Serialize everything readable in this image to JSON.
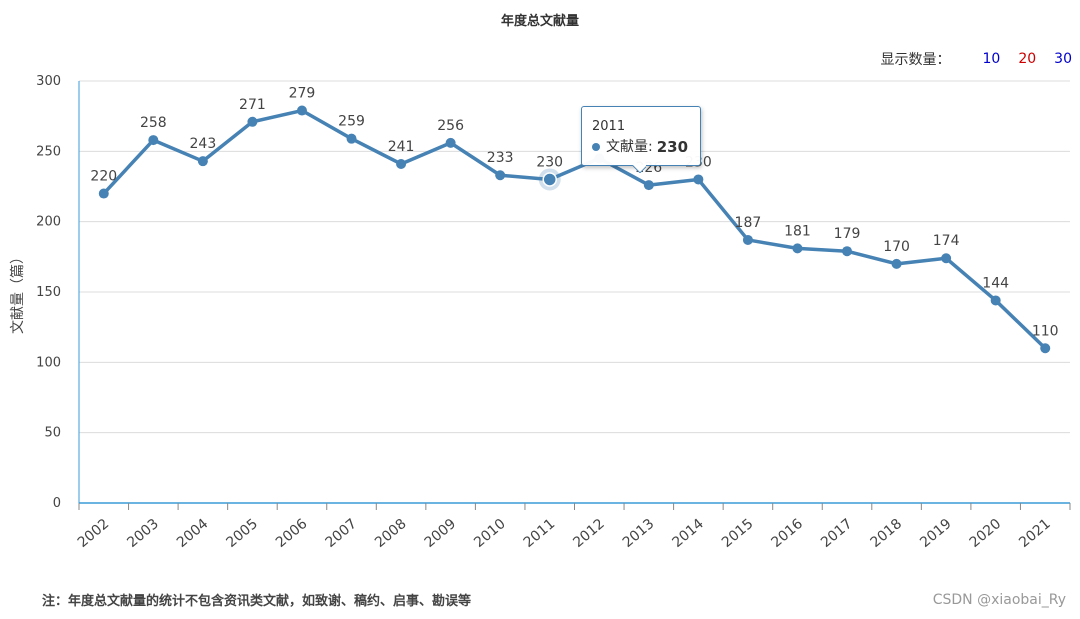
{
  "chart_data": {
    "type": "line",
    "title": "年度总文献量",
    "ylabel": "文献量（篇）",
    "xlabel": "",
    "ylim": [
      0,
      300
    ],
    "yticks": [
      0,
      50,
      100,
      150,
      200,
      250,
      300
    ],
    "categories": [
      "2002",
      "2003",
      "2004",
      "2005",
      "2006",
      "2007",
      "2008",
      "2009",
      "2010",
      "2011",
      "2012",
      "2013",
      "2014",
      "2015",
      "2016",
      "2017",
      "2018",
      "2019",
      "2020",
      "2021"
    ],
    "series": [
      {
        "values": [
          220,
          258,
          243,
          271,
          279,
          259,
          241,
          256,
          233,
          230,
          245,
          226,
          230,
          187,
          181,
          179,
          170,
          174,
          144,
          110
        ]
      }
    ],
    "data_labels": [
      "220",
      "258",
      "243",
      "271",
      "279",
      "259",
      "241",
      "256",
      "233",
      "230",
      "",
      "226",
      "230",
      "187",
      "181",
      "179",
      "170",
      "174",
      "144",
      "110"
    ],
    "grid": true,
    "highlight_index": 9,
    "colors": {
      "line": "#4682b4",
      "grid": "#dcdcdc",
      "axis": "#3a9bd9"
    }
  },
  "switch": {
    "label": "显示数量：",
    "options": [
      {
        "text": "10",
        "color": "#0000cc"
      },
      {
        "text": "20",
        "color": "#cc0000"
      },
      {
        "text": "30",
        "color": "#0000cc"
      }
    ]
  },
  "tooltip": {
    "year": "2011",
    "series_label": "文献量:",
    "value": "230"
  },
  "footnote": "注：年度总文献量的统计不包含资讯类文献，如致谢、稿约、启事、勘误等",
  "watermark": "CSDN @xiaobai_Ry"
}
